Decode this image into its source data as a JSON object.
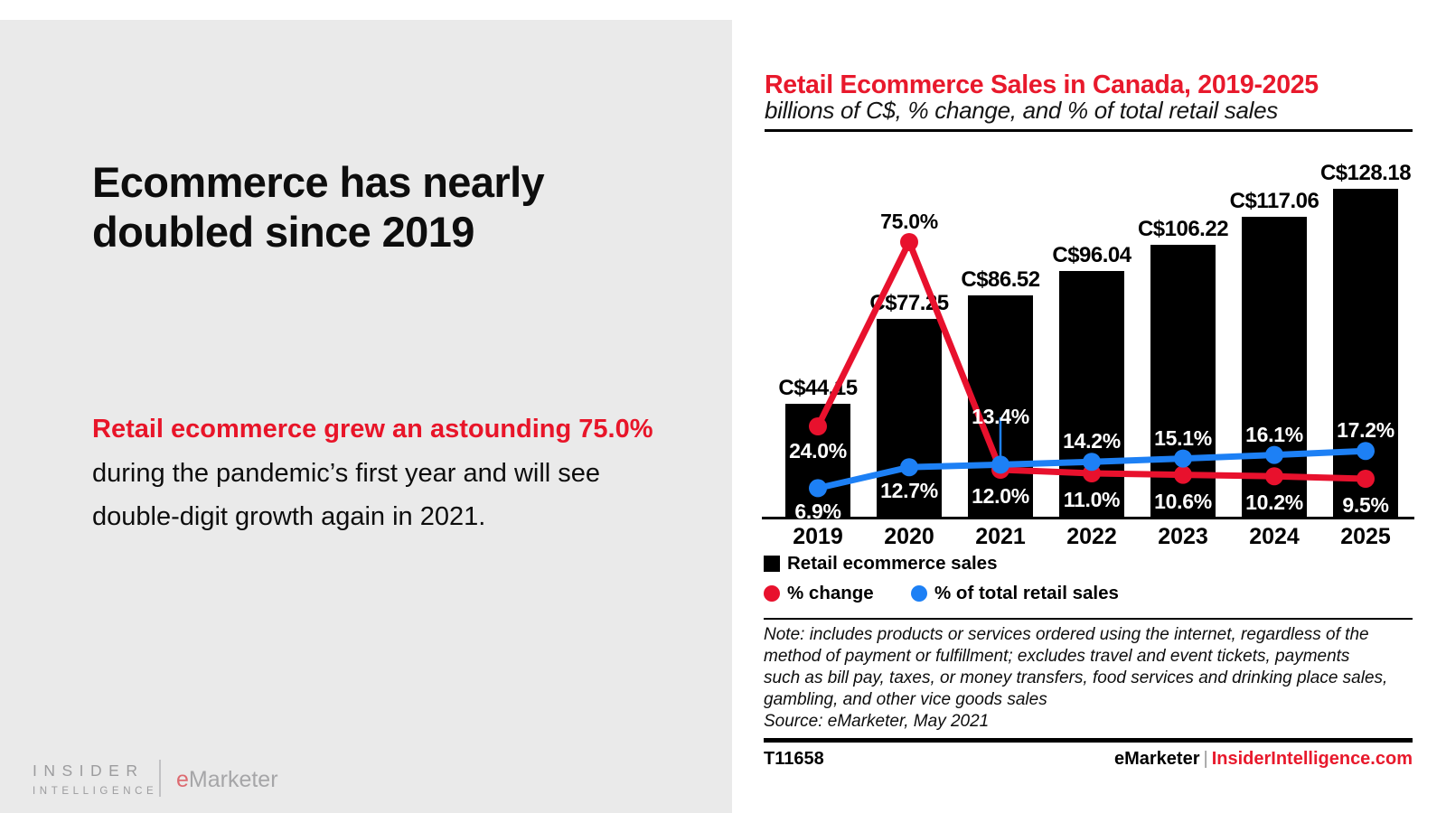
{
  "left_panel": {
    "headline": "Ecommerce has nearly\ndoubled since 2019",
    "body_highlight": "Retail ecommerce grew an astounding 75.0%",
    "body_rest": " during the pandemic’s first year and will see double-digit growth again in 2021.",
    "logo": {
      "insider_line1": "INSIDER",
      "insider_line2": "INTELLIGENCE",
      "emarketer_e": "e",
      "emarketer_rest": "Marketer"
    }
  },
  "panel": {
    "note": "Note: includes products or services ordered using the internet, regardless of the\nmethod of payment or fulfillment; excludes travel and event tickets, payments\nsuch as bill pay, taxes, or money transfers, food services and drinking place sales,\ngambling, and other vice goods sales",
    "source": "Source: eMarketer, May 2021",
    "footer_id": "T11658",
    "footer_brand": "eMarketer",
    "footer_separator": "|",
    "footer_site": "InsiderIntelligence.com"
  },
  "chart_data": {
    "type": "bar+line",
    "title": "Retail Ecommerce Sales in Canada, 2019-2025",
    "subtitle": "billions of C$, % change, and % of total retail sales",
    "categories": [
      "2019",
      "2020",
      "2021",
      "2022",
      "2023",
      "2024",
      "2025"
    ],
    "legend_position": "below",
    "grid": false,
    "bar_axis_range": [
      0,
      145
    ],
    "pct_axis_range": [
      0,
      100
    ],
    "series": [
      {
        "name": "Retail ecommerce sales",
        "type": "bar",
        "unit": "billions of C$",
        "color": "#000000",
        "values": [
          44.15,
          77.25,
          86.52,
          96.04,
          106.22,
          117.06,
          128.18
        ],
        "labels": [
          "C$44.15",
          "C$77.25",
          "C$86.52",
          "C$96.04",
          "C$106.22",
          "C$117.06",
          "C$128.18"
        ]
      },
      {
        "name": "% change",
        "type": "line",
        "color": "#e8112d",
        "values": [
          24.0,
          75.0,
          12.0,
          11.0,
          10.6,
          10.2,
          9.5
        ],
        "labels": [
          "24.0%",
          "75.0%",
          "12.0%",
          "11.0%",
          "10.6%",
          "10.2%",
          "9.5%"
        ]
      },
      {
        "name": "% of total retail sales",
        "type": "line",
        "color": "#1d80f5",
        "values": [
          6.9,
          12.7,
          13.4,
          14.2,
          15.1,
          16.1,
          17.2
        ],
        "labels": [
          "6.9%",
          "12.7%",
          "13.4%",
          "14.2%",
          "15.1%",
          "16.1%",
          "17.2%"
        ]
      }
    ]
  }
}
